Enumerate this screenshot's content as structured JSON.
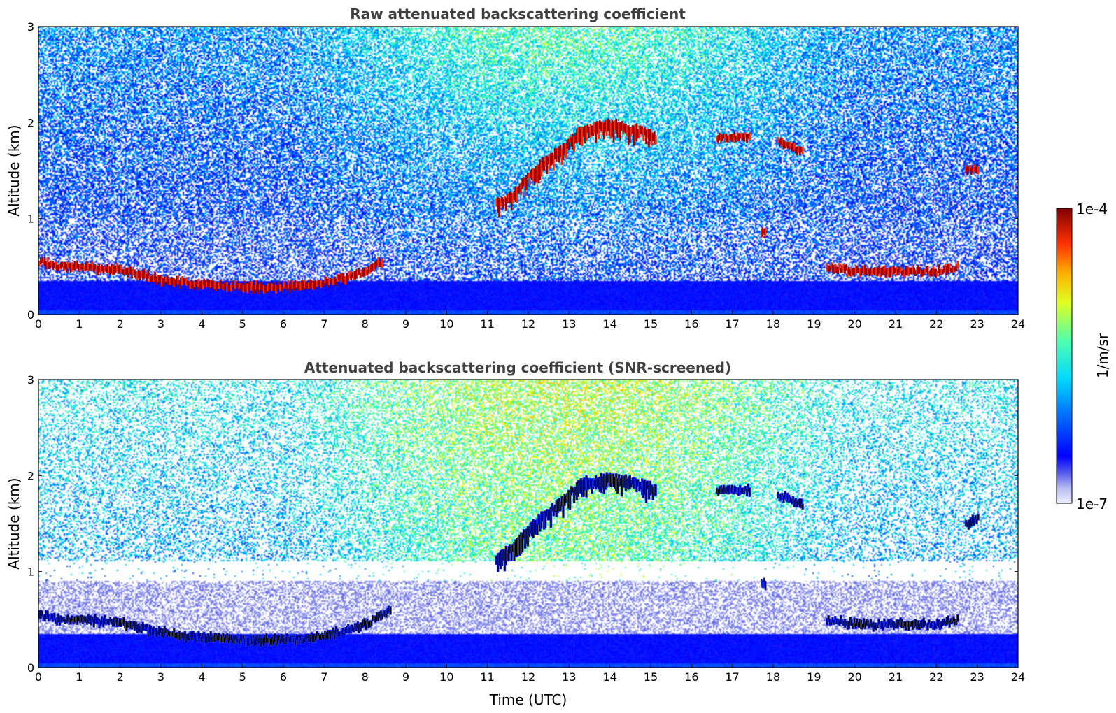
{
  "chart_data": [
    {
      "type": "heatmap",
      "title": "Raw attenuated backscattering coefficient",
      "xlabel": "",
      "ylabel": "Altitude (km)",
      "xlim": [
        0,
        24
      ],
      "ylim": [
        0,
        3
      ],
      "x_ticks": [
        "0",
        "1",
        "2",
        "3",
        "4",
        "5",
        "6",
        "7",
        "8",
        "9",
        "10",
        "11",
        "12",
        "13",
        "14",
        "15",
        "16",
        "17",
        "18",
        "19",
        "20",
        "21",
        "22",
        "23",
        "24"
      ],
      "y_ticks": [
        "0",
        "1",
        "2",
        "3"
      ],
      "grid": false,
      "layers": [
        {
          "feature": "boundary layer top",
          "x": [
            0,
            0.5,
            1,
            1.5,
            2,
            2.8,
            3.5,
            4.5,
            5.5,
            6.5,
            7.5,
            8.0,
            8.4
          ],
          "y": [
            0.55,
            0.5,
            0.5,
            0.48,
            0.47,
            0.38,
            0.33,
            0.3,
            0.28,
            0.3,
            0.38,
            0.45,
            0.55
          ]
        },
        {
          "feature": "rising cloud",
          "x": [
            11.2,
            11.6,
            12,
            12.4,
            12.8,
            13.2,
            13.6,
            14,
            14.4,
            14.8,
            15.1
          ],
          "y": [
            1.15,
            1.25,
            1.45,
            1.6,
            1.72,
            1.9,
            1.95,
            1.98,
            1.95,
            1.92,
            1.85
          ]
        },
        {
          "feature": "cloud",
          "x": [
            16.6,
            17.4
          ],
          "y": [
            1.85,
            1.85
          ]
        },
        {
          "feature": "cloud",
          "x": [
            18.1,
            18.7
          ],
          "y": [
            1.8,
            1.7
          ]
        },
        {
          "feature": "cloud",
          "x": [
            22.7,
            23.0
          ],
          "y": [
            1.5,
            1.52
          ]
        },
        {
          "feature": "cloud",
          "x": [
            17.7,
            17.8
          ],
          "y": [
            0.85,
            0.85
          ]
        },
        {
          "feature": "boundary layer top",
          "x": [
            19.3,
            20,
            21,
            22,
            22.5
          ],
          "y": [
            0.5,
            0.45,
            0.45,
            0.45,
            0.5
          ]
        }
      ]
    },
    {
      "type": "heatmap",
      "title": "Attenuated backscattering coefficient (SNR-screened)",
      "xlabel": "Time (UTC)",
      "ylabel": "Altitude (km)",
      "xlim": [
        0,
        24
      ],
      "ylim": [
        0,
        3
      ],
      "x_ticks": [
        "0",
        "1",
        "2",
        "3",
        "4",
        "5",
        "6",
        "7",
        "8",
        "9",
        "10",
        "11",
        "12",
        "13",
        "14",
        "15",
        "16",
        "17",
        "18",
        "19",
        "20",
        "21",
        "22",
        "23",
        "24"
      ],
      "y_ticks": [
        "0",
        "1",
        "2",
        "3"
      ],
      "grid": false,
      "layers": [
        {
          "feature": "boundary layer top",
          "x": [
            0,
            0.5,
            1,
            1.5,
            2,
            2.8,
            3.5,
            4.5,
            5.5,
            6.5,
            7.5,
            8.0,
            8.6
          ],
          "y": [
            0.55,
            0.5,
            0.5,
            0.48,
            0.47,
            0.38,
            0.33,
            0.3,
            0.28,
            0.3,
            0.38,
            0.45,
            0.6
          ]
        },
        {
          "feature": "rising cloud",
          "x": [
            11.2,
            11.6,
            12,
            12.4,
            12.8,
            13.2,
            13.6,
            14,
            14.4,
            14.8,
            15.1
          ],
          "y": [
            1.15,
            1.25,
            1.45,
            1.6,
            1.72,
            1.9,
            1.95,
            1.98,
            1.95,
            1.92,
            1.85
          ]
        },
        {
          "feature": "cloud",
          "x": [
            16.6,
            17.4
          ],
          "y": [
            1.85,
            1.85
          ]
        },
        {
          "feature": "cloud",
          "x": [
            18.1,
            18.7
          ],
          "y": [
            1.8,
            1.7
          ]
        },
        {
          "feature": "cloud",
          "x": [
            22.7,
            23.0
          ],
          "y": [
            1.5,
            1.55
          ]
        },
        {
          "feature": "cloud",
          "x": [
            17.7,
            17.8
          ],
          "y": [
            0.88,
            0.88
          ]
        },
        {
          "feature": "boundary layer top",
          "x": [
            19.3,
            20,
            21,
            22,
            22.5
          ],
          "y": [
            0.5,
            0.45,
            0.45,
            0.45,
            0.5
          ]
        }
      ]
    }
  ],
  "colorbar": {
    "label": "1/m/sr",
    "max_label": "1e-4",
    "min_label": "1e-7",
    "scale": "log",
    "range": [
      1e-07,
      0.0001
    ],
    "colormap": "jet"
  }
}
